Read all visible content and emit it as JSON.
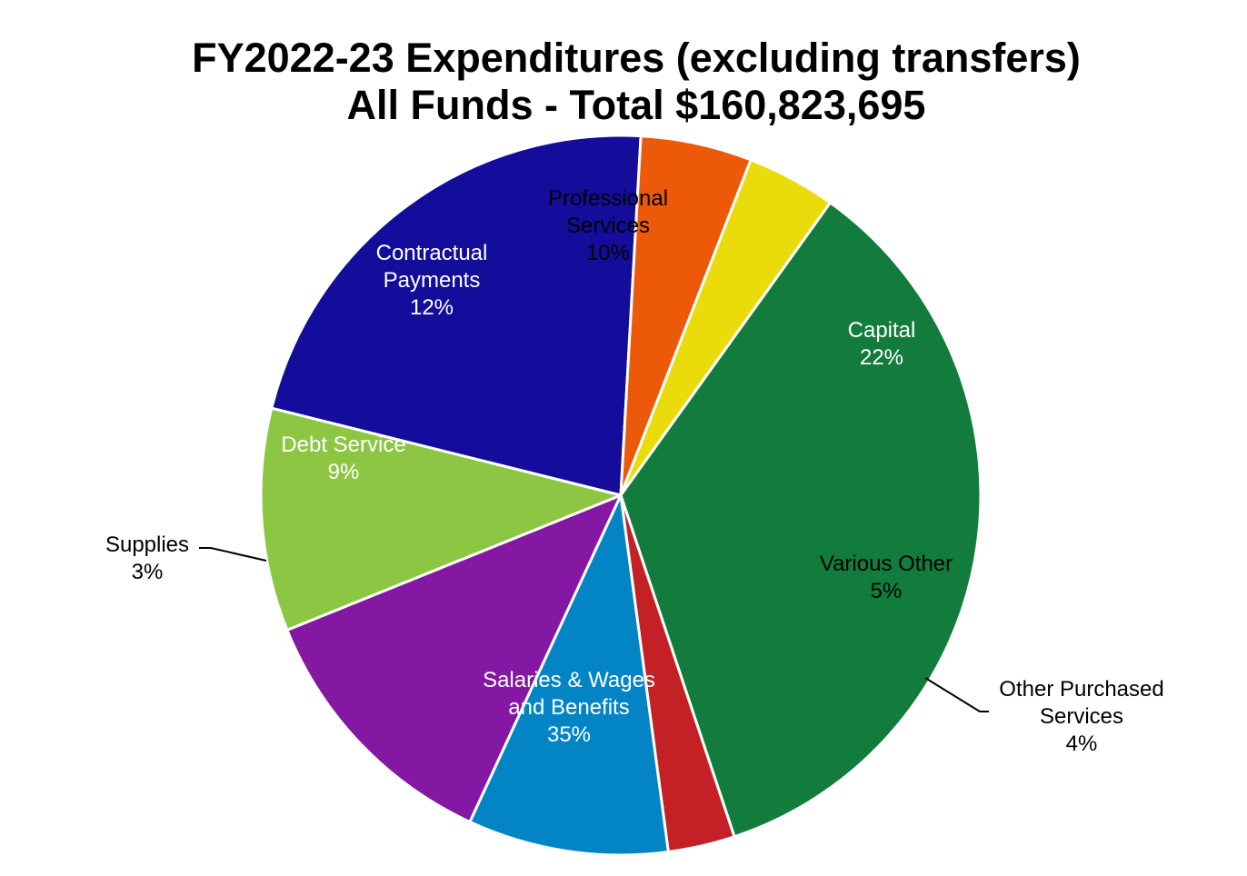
{
  "chart_data": {
    "type": "pie",
    "title": "FY2022-23 Expenditures (excluding transfers)",
    "subtitle": "All Funds - Total $160,823,695",
    "slices": [
      {
        "label": "Capital",
        "label_lines": [
          "Capital"
        ],
        "value": 22,
        "value_label": "22%",
        "color": "#140D9C",
        "label_color": "#FFFFFF"
      },
      {
        "label": "Various Other",
        "label_lines": [
          "Various Other"
        ],
        "value": 5,
        "value_label": "5%",
        "color": "#EC5A09",
        "label_color": "#000000"
      },
      {
        "label": "Other Purchased Services",
        "label_lines": [
          "Other Purchased",
          "Services"
        ],
        "value": 4,
        "value_label": "4%",
        "color": "#EADB0B",
        "label_color": "#000000"
      },
      {
        "label": "Salaries & Wages and Benefits",
        "label_lines": [
          "Salaries & Wages",
          "and Benefits"
        ],
        "value": 35,
        "value_label": "35%",
        "color": "#127C3D",
        "label_color": "#FFFFFF"
      },
      {
        "label": "Supplies",
        "label_lines": [
          "Supplies"
        ],
        "value": 3,
        "value_label": "3%",
        "color": "#C42126",
        "label_color": "#000000"
      },
      {
        "label": "Debt Service",
        "label_lines": [
          "Debt Service"
        ],
        "value": 9,
        "value_label": "9%",
        "color": "#0385C5",
        "label_color": "#FFFFFF"
      },
      {
        "label": "Contractual Payments",
        "label_lines": [
          "Contractual",
          "Payments"
        ],
        "value": 12,
        "value_label": "12%",
        "color": "#8418A2",
        "label_color": "#FFFFFF"
      },
      {
        "label": "Professional Services",
        "label_lines": [
          "Professional",
          "Services"
        ],
        "value": 10,
        "value_label": "10%",
        "color": "#8DC643",
        "label_color": "#000000"
      }
    ]
  }
}
